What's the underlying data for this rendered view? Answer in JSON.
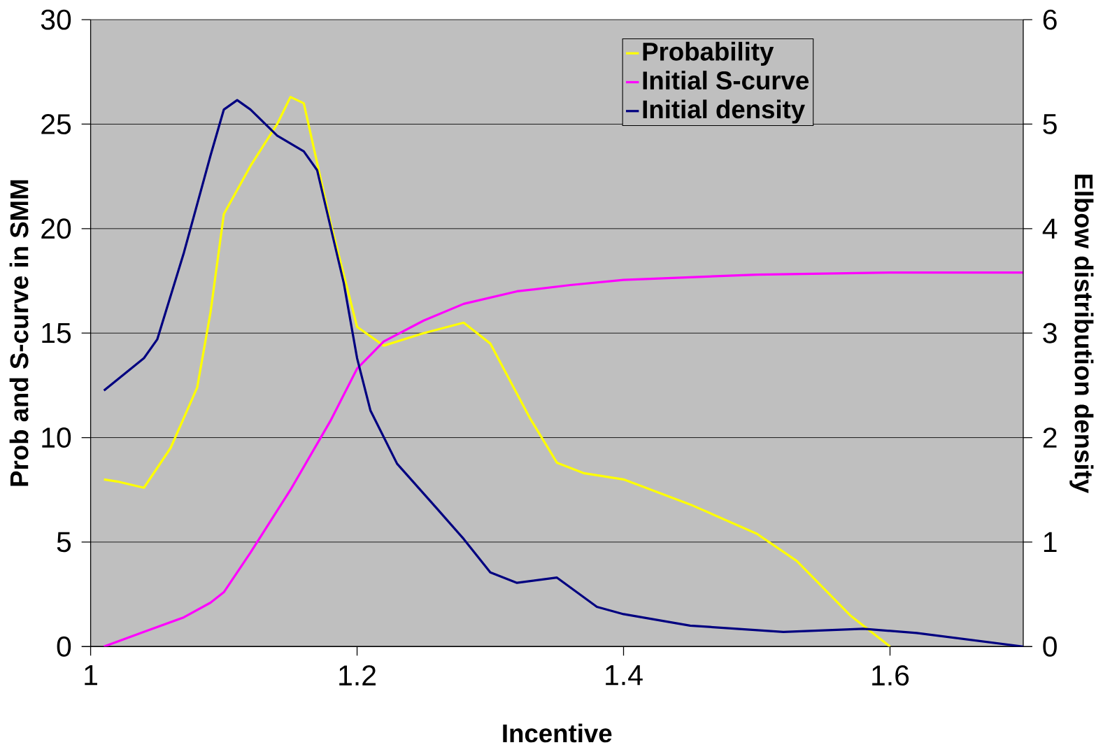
{
  "chart_data": {
    "type": "line",
    "xlabel": "Incentive",
    "ylabel": "Prob and S-curve in SMM",
    "y2label": "Elbow distribution density",
    "xlim": [
      1,
      1.7
    ],
    "xticks": [
      1,
      1.2,
      1.4,
      1.6
    ],
    "ylim": [
      0,
      30
    ],
    "yticks": [
      0,
      5,
      10,
      15,
      20,
      25,
      30
    ],
    "y2lim": [
      0,
      6
    ],
    "y2ticks": [
      0,
      1,
      2,
      3,
      4,
      5,
      6
    ],
    "grid": "y",
    "legend": "top right",
    "marker": "none",
    "line_style": "solid",
    "series": [
      {
        "name": "Probability",
        "color": "#ffff00",
        "x": [
          1.01,
          1.02,
          1.04,
          1.06,
          1.08,
          1.09,
          1.1,
          1.12,
          1.14,
          1.15,
          1.16,
          1.18,
          1.2,
          1.22,
          1.25,
          1.28,
          1.3,
          1.33,
          1.35,
          1.37,
          1.4,
          1.45,
          1.5,
          1.53,
          1.57,
          1.6
        ],
        "values": [
          8.0,
          7.9,
          7.6,
          9.5,
          12.4,
          16,
          20.7,
          23,
          25,
          26.3,
          26,
          20.3,
          15.3,
          14.4,
          15.0,
          15.5,
          14.5,
          10.9,
          8.8,
          8.3,
          8.0,
          6.8,
          5.4,
          4.1,
          1.5,
          0
        ]
      },
      {
        "name": "Initial S-curve",
        "color": "#ff00ff",
        "x": [
          1.01,
          1.04,
          1.07,
          1.09,
          1.1,
          1.12,
          1.15,
          1.18,
          1.2,
          1.22,
          1.25,
          1.28,
          1.32,
          1.36,
          1.4,
          1.5,
          1.6,
          1.7
        ],
        "values": [
          0,
          0.7,
          1.4,
          2.1,
          2.6,
          4.5,
          7.5,
          10.8,
          13.3,
          14.6,
          15.6,
          16.4,
          17.0,
          17.3,
          17.55,
          17.8,
          17.9,
          17.9
        ]
      },
      {
        "name": "Initial density",
        "color": "#000080",
        "axis": "y2",
        "x": [
          1.01,
          1.04,
          1.05,
          1.07,
          1.09,
          1.1,
          1.11,
          1.12,
          1.14,
          1.16,
          1.17,
          1.19,
          1.2,
          1.21,
          1.23,
          1.26,
          1.28,
          1.3,
          1.32,
          1.35,
          1.38,
          1.4,
          1.45,
          1.52,
          1.58,
          1.62,
          1.7
        ],
        "values": [
          2.45,
          2.76,
          2.94,
          3.77,
          4.7,
          5.14,
          5.23,
          5.14,
          4.89,
          4.74,
          4.56,
          3.48,
          2.76,
          2.26,
          1.75,
          1.32,
          1.03,
          0.71,
          0.61,
          0.66,
          0.38,
          0.31,
          0.2,
          0.14,
          0.17,
          0.13,
          0
        ]
      }
    ]
  }
}
